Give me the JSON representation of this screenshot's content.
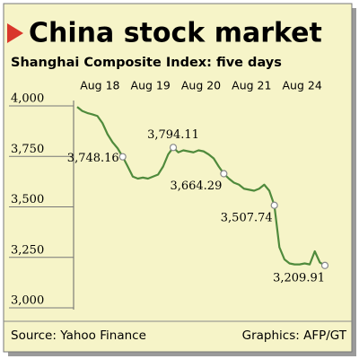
{
  "chart_data": {
    "type": "line",
    "title": "China stock market",
    "subtitle": "Shanghai Composite Index: five days",
    "categories": [
      null,
      null,
      null,
      null,
      "Aug 18",
      null,
      null,
      null,
      null,
      null,
      null,
      null,
      null,
      null,
      "Aug 19",
      null,
      null,
      null,
      null,
      null,
      null,
      null,
      null,
      null,
      "Aug 20",
      null,
      null,
      null,
      null,
      null,
      null,
      null,
      null,
      null,
      "Aug 21",
      null,
      null,
      null,
      null,
      null,
      null,
      null,
      null,
      null,
      "Aug 24",
      null,
      null,
      null,
      null,
      null
    ],
    "series": [
      {
        "color": "#4f8a3c",
        "values": [
          3995,
          3975,
          3965,
          3958,
          3950,
          3915,
          3860,
          3820,
          3790,
          3748.16,
          3700,
          3650,
          3640,
          3645,
          3640,
          3650,
          3660,
          3700,
          3760,
          3794.11,
          3770,
          3780,
          3775,
          3770,
          3780,
          3775,
          3760,
          3740,
          3700,
          3664.29,
          3640,
          3620,
          3610,
          3590,
          3585,
          3580,
          3590,
          3610,
          3580,
          3507.74,
          3300,
          3240,
          3220,
          3215,
          3215,
          3220,
          3215,
          3280,
          3225,
          3209.91
        ],
        "value_labels": [
          null,
          null,
          null,
          null,
          null,
          null,
          null,
          null,
          null,
          "3,748.16",
          null,
          null,
          null,
          null,
          null,
          null,
          null,
          null,
          null,
          "3,794.11",
          null,
          null,
          null,
          null,
          null,
          null,
          null,
          null,
          null,
          "3,664.29",
          null,
          null,
          null,
          null,
          null,
          null,
          null,
          null,
          null,
          "3,507.74",
          null,
          null,
          null,
          null,
          null,
          null,
          null,
          null,
          null,
          "3,209.91"
        ]
      }
    ],
    "ylim": [
      3000,
      4000
    ],
    "yticks": [
      {
        "value": 3000,
        "label": "3,000"
      },
      {
        "value": 3250,
        "label": "3,250"
      },
      {
        "value": 3500,
        "label": "3,500"
      },
      {
        "value": 3750,
        "label": "3,750"
      },
      {
        "value": 4000,
        "label": "4,000"
      }
    ],
    "grid": false,
    "source": "Source: Yahoo Finance",
    "credit": "Graphics: AFP/GT"
  }
}
